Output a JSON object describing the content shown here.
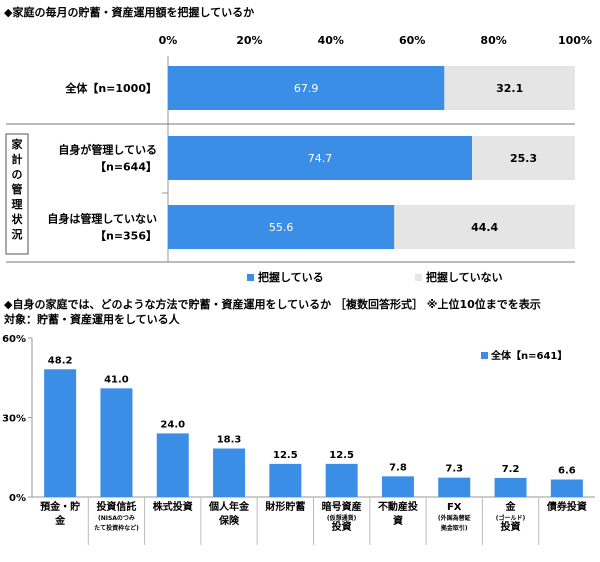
{
  "chart1": {
    "title": "◆家庭の毎月の貯蓄・資産運用額を把握しているか",
    "side_label": "家計の管理状況",
    "chart_data": {
      "type": "bar",
      "orientation": "horizontal",
      "stacked": true,
      "percent": true,
      "xlim": [
        0,
        100
      ],
      "ticks": [
        "0%",
        "20%",
        "40%",
        "60%",
        "80%",
        "100%"
      ],
      "categories": [
        {
          "lines": [
            "全体【n=1000】"
          ]
        },
        {
          "lines": [
            "自身が管理している",
            "【n=644】"
          ]
        },
        {
          "lines": [
            "自身は管理していない",
            "【n=356】"
          ]
        }
      ],
      "series": [
        {
          "name": "把握している",
          "color": "#3a8ee6",
          "values": [
            67.9,
            74.7,
            55.6
          ]
        },
        {
          "name": "把握していない",
          "color": "#e5e5e5",
          "values": [
            32.1,
            25.3,
            44.4
          ]
        }
      ],
      "legend": "bottom"
    }
  },
  "chart2": {
    "title": "◆自身の家庭では、どのような方法で貯蓄・資産運用をしているか ［複数回答形式］ ※上位10位までを表示",
    "subtitle": "対象：貯蓄・資産運用をしている人",
    "chart_data": {
      "type": "bar",
      "ylim": [
        0,
        60
      ],
      "ticks": [
        "0%",
        "30%",
        "60%"
      ],
      "legend_label": "全体【n=641】",
      "color": "#3a8ee6",
      "categories": [
        {
          "main": "預金・貯金",
          "sub": "",
          "main2": ""
        },
        {
          "main": "投資信託",
          "sub": "(NISAのつみたて投資枠など)",
          "main2": ""
        },
        {
          "main": "株式投資",
          "sub": "",
          "main2": ""
        },
        {
          "main": "個人年金保険",
          "sub": "",
          "main2": ""
        },
        {
          "main": "財形貯蓄",
          "sub": "",
          "main2": ""
        },
        {
          "main": "暗号資産",
          "sub": "(仮想通貨)",
          "main2": "投資"
        },
        {
          "main": "不動産投資",
          "sub": "",
          "main2": ""
        },
        {
          "main": "FX",
          "sub": "(外国為替証拠金取引)",
          "main2": ""
        },
        {
          "main": "金",
          "sub": "(ゴールド)",
          "main2": "投資"
        },
        {
          "main": "債券投資",
          "sub": "",
          "main2": ""
        }
      ],
      "values": [
        48.2,
        41.0,
        24.0,
        18.3,
        12.5,
        12.5,
        7.8,
        7.3,
        7.2,
        6.6
      ],
      "value_labels": [
        "48.2",
        "41.0",
        "24.0",
        "18.3",
        "12.5",
        "12.5",
        "7.8",
        "7.3",
        "7.2",
        "6.6"
      ]
    }
  }
}
